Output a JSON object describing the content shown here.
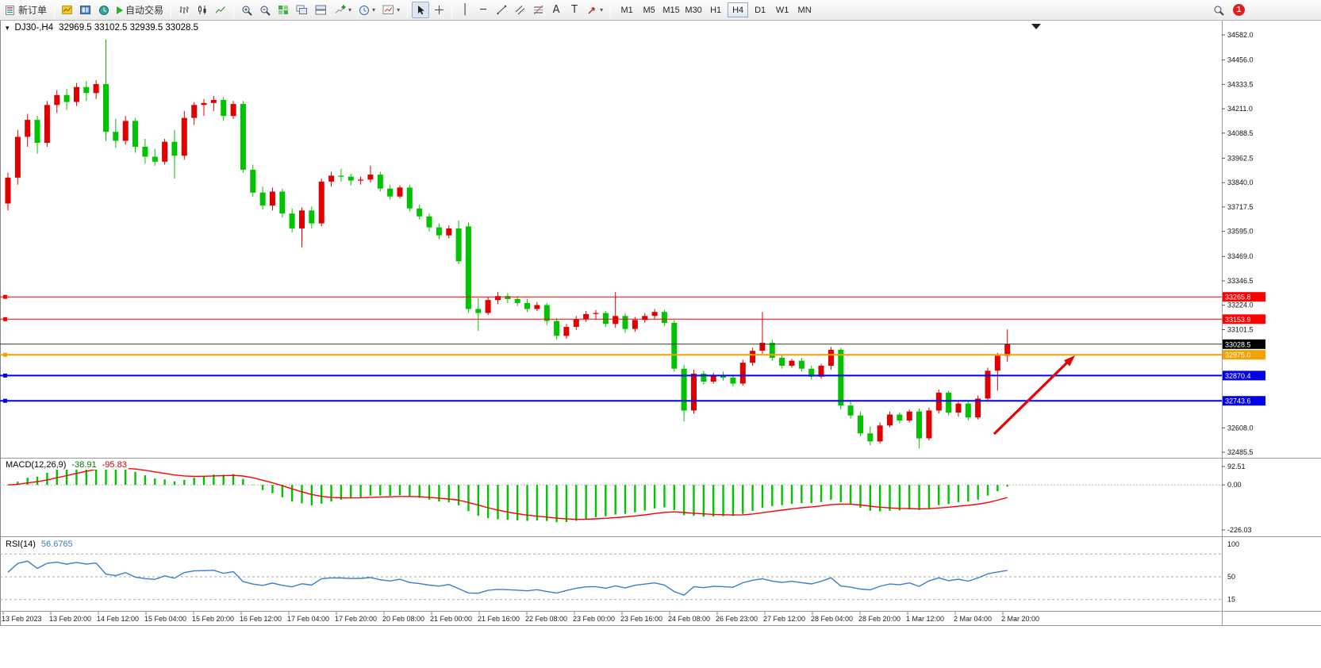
{
  "toolbar": {
    "new_order": "新订单",
    "auto_trading": "自动交易",
    "timeframes": [
      "M1",
      "M5",
      "M15",
      "M30",
      "H1",
      "H4",
      "D1",
      "W1",
      "MN"
    ],
    "active_timeframe": "H4",
    "notification_count": "1",
    "glyphs": {
      "caret": "▾",
      "vertical_line": "│",
      "horizontal_line": "─",
      "text_tool": "A",
      "label_tool": "T"
    }
  },
  "chart": {
    "symbol_period": "DJ30-,H4",
    "ohlc": "32969.5 33102.5 32939.5 33028.5",
    "collapse_glyph": "▾",
    "price_axis": [
      "34582.0",
      "34456.0",
      "34333.5",
      "34211.0",
      "34088.5",
      "33962.5",
      "33840.0",
      "33717.5",
      "33595.0",
      "33469.0",
      "33346.5",
      "33224.0",
      "33101.5",
      "32608.0",
      "32485.5"
    ],
    "hlines": [
      {
        "price": 33265.8,
        "label": "33265.8",
        "color": "#ff0000",
        "width": 1
      },
      {
        "price": 33153.9,
        "label": "33153.9",
        "color": "#ff0000",
        "width": 1
      },
      {
        "price": 32975.0,
        "label": "32975.0",
        "color": "#f5a100",
        "width": 2
      },
      {
        "price": 32870.4,
        "label": "32870.4",
        "color": "#0000ee",
        "width": 2
      },
      {
        "price": 32743.6,
        "label": "32743.6",
        "color": "#0000ee",
        "width": 2
      }
    ],
    "current_price": {
      "price": 33028.5,
      "label": "33028.5",
      "color": "#000000"
    },
    "annotations": [
      {
        "type": "arrow",
        "direction": "up-right",
        "color": "#e60000"
      }
    ]
  },
  "macd_panel": {
    "name": "MACD(12,26,9)",
    "value_main": "-38.91",
    "value_signal": "-95.83",
    "axis": [
      "92.51",
      "0.00",
      "-226.03"
    ]
  },
  "rsi_panel": {
    "name": "RSI(14)",
    "value": "56.6765",
    "axis": [
      "100",
      "50",
      "15"
    ],
    "levels": [
      85,
      50,
      15
    ]
  },
  "time_axis": [
    "13 Feb 2023",
    "13 Feb 20:00",
    "14 Feb 12:00",
    "15 Feb 04:00",
    "15 Feb 20:00",
    "16 Feb 12:00",
    "17 Feb 04:00",
    "17 Feb 20:00",
    "20 Feb 08:00",
    "21 Feb 00:00",
    "21 Feb 16:00",
    "22 Feb 08:00",
    "23 Feb 00:00",
    "23 Feb 16:00",
    "24 Feb 08:00",
    "26 Feb 23:00",
    "27 Feb 12:00",
    "28 Feb 04:00",
    "28 Feb 20:00",
    "1 Mar 12:00",
    "2 Mar 04:00",
    "2 Mar 20:00"
  ],
  "chart_data": {
    "type": "candlestick",
    "symbol": "DJ30-",
    "timeframe": "H4",
    "up_color": "#e00000",
    "down_color": "#00c400",
    "price_range": [
      32485.5,
      34582.0
    ],
    "candles_ohlc": [
      [
        33735,
        33890,
        33700,
        33865
      ],
      [
        33865,
        34105,
        33830,
        34070
      ],
      [
        34070,
        34185,
        34020,
        34155
      ],
      [
        34155,
        34175,
        33985,
        34040
      ],
      [
        34040,
        34250,
        34020,
        34230
      ],
      [
        34230,
        34305,
        34190,
        34280
      ],
      [
        34280,
        34310,
        34205,
        34245
      ],
      [
        34245,
        34340,
        34225,
        34320
      ],
      [
        34320,
        34350,
        34250,
        34290
      ],
      [
        34290,
        34355,
        34260,
        34335
      ],
      [
        34335,
        34560,
        34050,
        34095
      ],
      [
        34095,
        34160,
        34015,
        34050
      ],
      [
        34050,
        34175,
        34030,
        34150
      ],
      [
        34150,
        34165,
        33990,
        34020
      ],
      [
        34020,
        34060,
        33935,
        33970
      ],
      [
        33970,
        34010,
        33925,
        33945
      ],
      [
        33945,
        34060,
        33930,
        34045
      ],
      [
        34045,
        34105,
        33860,
        33975
      ],
      [
        33975,
        34200,
        33955,
        34165
      ],
      [
        34165,
        34245,
        34130,
        34230
      ],
      [
        34230,
        34260,
        34175,
        34240
      ],
      [
        34240,
        34275,
        34200,
        34255
      ],
      [
        34255,
        34270,
        34150,
        34175
      ],
      [
        34175,
        34250,
        34160,
        34235
      ],
      [
        34235,
        34250,
        33890,
        33905
      ],
      [
        33905,
        33930,
        33770,
        33790
      ],
      [
        33790,
        33820,
        33705,
        33725
      ],
      [
        33725,
        33815,
        33700,
        33795
      ],
      [
        33795,
        33810,
        33665,
        33685
      ],
      [
        33685,
        33710,
        33590,
        33610
      ],
      [
        33610,
        33715,
        33515,
        33700
      ],
      [
        33700,
        33720,
        33610,
        33635
      ],
      [
        33635,
        33860,
        33620,
        33845
      ],
      [
        33845,
        33895,
        33820,
        33875
      ],
      [
        33875,
        33910,
        33845,
        33870
      ],
      [
        33870,
        33885,
        33825,
        33850
      ],
      [
        33850,
        33870,
        33830,
        33855
      ],
      [
        33855,
        33925,
        33840,
        33880
      ],
      [
        33880,
        33895,
        33795,
        33810
      ],
      [
        33810,
        33830,
        33755,
        33770
      ],
      [
        33770,
        33825,
        33760,
        33815
      ],
      [
        33815,
        33830,
        33695,
        33710
      ],
      [
        33710,
        33730,
        33655,
        33670
      ],
      [
        33670,
        33685,
        33595,
        33615
      ],
      [
        33615,
        33635,
        33555,
        33575
      ],
      [
        33575,
        33625,
        33560,
        33610
      ],
      [
        33610,
        33650,
        33430,
        33445
      ],
      [
        33620,
        33640,
        33185,
        33205
      ],
      [
        33205,
        33260,
        33095,
        33185
      ],
      [
        33185,
        33265,
        33175,
        33250
      ],
      [
        33250,
        33290,
        33230,
        33270
      ],
      [
        33270,
        33285,
        33235,
        33255
      ],
      [
        33255,
        33270,
        33220,
        33235
      ],
      [
        33235,
        33255,
        33190,
        33205
      ],
      [
        33205,
        33240,
        33195,
        33225
      ],
      [
        33225,
        33235,
        33125,
        33145
      ],
      [
        33145,
        33160,
        33050,
        33070
      ],
      [
        33070,
        33130,
        33055,
        33115
      ],
      [
        33115,
        33170,
        33100,
        33155
      ],
      [
        33155,
        33195,
        33140,
        33180
      ],
      [
        33180,
        33200,
        33150,
        33185
      ],
      [
        33185,
        33195,
        33115,
        33130
      ],
      [
        33130,
        33290,
        33110,
        33170
      ],
      [
        33170,
        33185,
        33085,
        33105
      ],
      [
        33105,
        33165,
        33090,
        33150
      ],
      [
        33150,
        33185,
        33135,
        33170
      ],
      [
        33170,
        33205,
        33155,
        33190
      ],
      [
        33190,
        33200,
        33120,
        33135
      ],
      [
        33135,
        33150,
        32890,
        32905
      ],
      [
        32905,
        32925,
        32640,
        32695
      ],
      [
        32695,
        32900,
        32680,
        32880
      ],
      [
        32880,
        32895,
        32825,
        32840
      ],
      [
        32840,
        32885,
        32830,
        32870
      ],
      [
        32870,
        32890,
        32845,
        32860
      ],
      [
        32860,
        32875,
        32815,
        32830
      ],
      [
        32830,
        32950,
        32820,
        32935
      ],
      [
        32935,
        33010,
        32920,
        32995
      ],
      [
        32995,
        33190,
        32980,
        33035
      ],
      [
        33035,
        33050,
        32945,
        32960
      ],
      [
        32960,
        32975,
        32905,
        32920
      ],
      [
        32920,
        32955,
        32910,
        32945
      ],
      [
        32945,
        32960,
        32890,
        32905
      ],
      [
        32905,
        32920,
        32850,
        32865
      ],
      [
        32865,
        32930,
        32855,
        32920
      ],
      [
        32920,
        33015,
        32900,
        33000
      ],
      [
        33000,
        33010,
        32700,
        32720
      ],
      [
        32720,
        32740,
        32655,
        32670
      ],
      [
        32670,
        32690,
        32565,
        32580
      ],
      [
        32580,
        32615,
        32520,
        32540
      ],
      [
        32540,
        32635,
        32530,
        32620
      ],
      [
        32620,
        32690,
        32610,
        32675
      ],
      [
        32675,
        32685,
        32630,
        32645
      ],
      [
        32645,
        32700,
        32635,
        32690
      ],
      [
        32690,
        32705,
        32505,
        32555
      ],
      [
        32555,
        32710,
        32545,
        32695
      ],
      [
        32695,
        32800,
        32680,
        32785
      ],
      [
        32785,
        32795,
        32670,
        32685
      ],
      [
        32685,
        32740,
        32665,
        32730
      ],
      [
        32730,
        32745,
        32645,
        32660
      ],
      [
        32660,
        32770,
        32650,
        32755
      ],
      [
        32755,
        32910,
        32745,
        32895
      ],
      [
        32895,
        32985,
        32795,
        32970
      ],
      [
        32969.5,
        33102.5,
        32939.5,
        33028.5
      ]
    ],
    "indicators": {
      "macd": {
        "params": [
          12,
          26,
          9
        ],
        "histogram_color": "#00c400",
        "signal_color": "#ff0000",
        "range": [
          -226.03,
          92.51
        ],
        "last_values": [
          -38.91,
          -95.83
        ]
      },
      "rsi": {
        "params": [
          14
        ],
        "color": "#3d7ecb",
        "last": 56.6765,
        "range": [
          0,
          100
        ]
      }
    }
  }
}
